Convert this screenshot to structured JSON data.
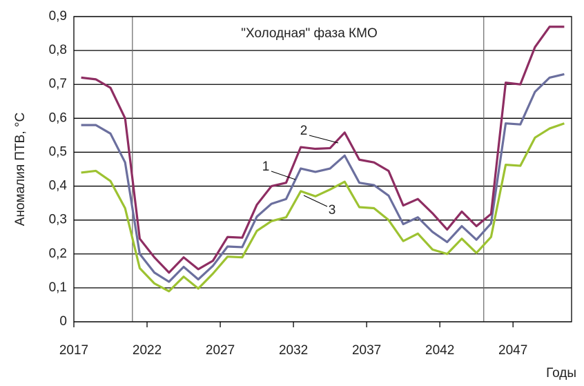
{
  "chart_data": {
    "type": "line",
    "annotation": "\"Холодная\" фаза КМО",
    "y_label": "Аномалия ПТВ, °С",
    "x_label": "Годы",
    "xlim": [
      2017,
      2051
    ],
    "xticks": [
      2017,
      2022,
      2027,
      2032,
      2037,
      2042,
      2047
    ],
    "ylim": [
      0,
      0.9
    ],
    "yticks": [
      0,
      {
        "value": 0.1,
        "label": "0,1"
      },
      {
        "value": 0.2,
        "label": "0,2"
      },
      {
        "value": 0.3,
        "label": "0,3"
      },
      {
        "value": 0.4,
        "label": "0,4"
      },
      {
        "value": 0.5,
        "label": "0,5"
      },
      {
        "value": 0.6,
        "label": "0,6"
      },
      {
        "value": 0.7,
        "label": "0,7"
      },
      {
        "value": 0.8,
        "label": "0,8"
      },
      {
        "value": 0.9,
        "label": "0,9"
      }
    ],
    "grid": true,
    "phase_bounds": [
      2021,
      2045
    ],
    "x": [
      2017.5,
      2018.5,
      2019.5,
      2020.5,
      2021.5,
      2022.5,
      2023.5,
      2024.5,
      2025.5,
      2026.5,
      2027.5,
      2028.5,
      2029.5,
      2030.5,
      2031.5,
      2032.5,
      2033.5,
      2034.5,
      2035.5,
      2036.5,
      2037.5,
      2038.5,
      2039.5,
      2040.5,
      2041.5,
      2042.5,
      2043.5,
      2044.5,
      2045.5,
      2046.5,
      2047.5,
      2048.5,
      2049.5,
      2050.5
    ],
    "series": [
      {
        "name": "1",
        "color": "#6b6f9e",
        "values": [
          0.58,
          0.58,
          0.555,
          0.47,
          0.2,
          0.145,
          0.118,
          0.162,
          0.125,
          0.165,
          0.222,
          0.22,
          0.31,
          0.348,
          0.362,
          0.452,
          0.442,
          0.452,
          0.49,
          0.41,
          0.403,
          0.372,
          0.288,
          0.308,
          0.265,
          0.235,
          0.282,
          0.242,
          0.29,
          0.585,
          0.582,
          0.678,
          0.72,
          0.73
        ]
      },
      {
        "name": "2",
        "color": "#8e2d62",
        "values": [
          0.72,
          0.715,
          0.69,
          0.6,
          0.245,
          0.19,
          0.145,
          0.19,
          0.155,
          0.18,
          0.25,
          0.248,
          0.345,
          0.4,
          0.41,
          0.515,
          0.51,
          0.512,
          0.558,
          0.478,
          0.47,
          0.445,
          0.343,
          0.362,
          0.32,
          0.272,
          0.325,
          0.282,
          0.318,
          0.705,
          0.7,
          0.81,
          0.87,
          0.87
        ]
      },
      {
        "name": "3",
        "color": "#9dc231",
        "values": [
          0.44,
          0.445,
          0.415,
          0.335,
          0.158,
          0.113,
          0.09,
          0.133,
          0.098,
          0.142,
          0.192,
          0.19,
          0.268,
          0.297,
          0.308,
          0.385,
          0.37,
          0.39,
          0.413,
          0.338,
          0.335,
          0.3,
          0.238,
          0.26,
          0.213,
          0.2,
          0.245,
          0.203,
          0.25,
          0.463,
          0.46,
          0.543,
          0.57,
          0.585
        ]
      }
    ]
  }
}
